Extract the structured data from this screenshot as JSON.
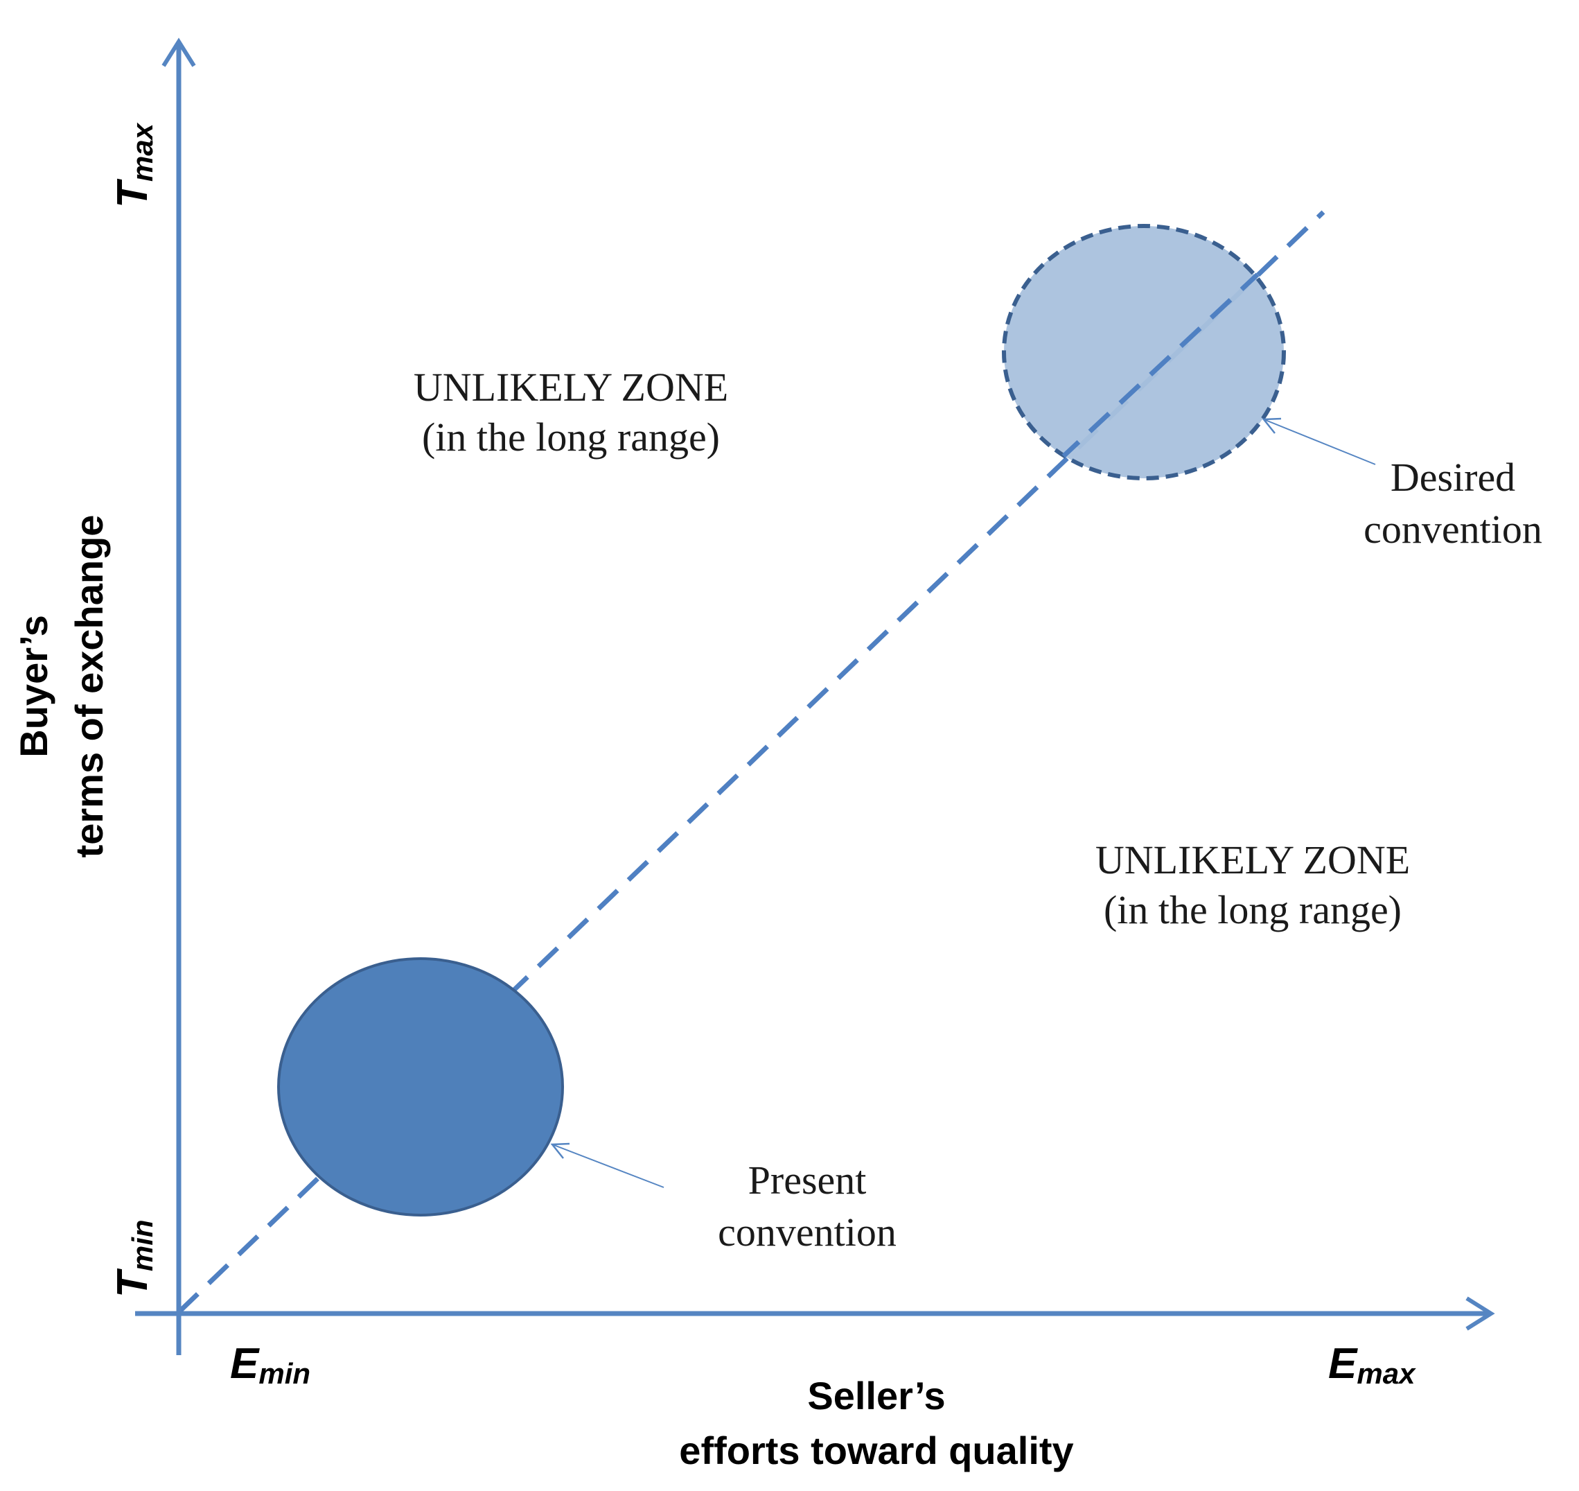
{
  "axes": {
    "x_title_line1": "Seller’s",
    "x_title_line2": "efforts toward quality",
    "y_title_line1": "Buyer’s",
    "y_title_line2": "terms of exchange",
    "x_min_label": {
      "main": "E",
      "sub": "min"
    },
    "x_max_label": {
      "main": "E",
      "sub": "max"
    },
    "y_min_label": {
      "main": "T",
      "sub": "min"
    },
    "y_max_label": {
      "main": "T",
      "sub": "max"
    }
  },
  "zones": {
    "upper": {
      "line1": "UNLIKELY ZONE",
      "line2": "(in the long range)"
    },
    "lower": {
      "line1": "UNLIKELY ZONE",
      "line2": "(in the long range)"
    }
  },
  "conventions": {
    "present": {
      "line1": "Present",
      "line2": "convention"
    },
    "desired": {
      "line1": "Desired",
      "line2": "convention"
    }
  },
  "colors": {
    "axis": "#5585C2",
    "diagonal": "#4F80C2",
    "present_fill": "#4F80BA",
    "present_stroke": "#3A5F8F",
    "desired_fill": "#A9C1DD",
    "desired_stroke": "#3A5F8F",
    "pointer": "#5585C2"
  }
}
